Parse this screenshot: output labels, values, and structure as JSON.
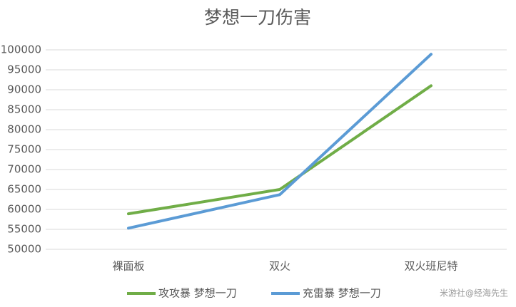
{
  "chart_data": {
    "type": "line",
    "title": "梦想一刀伤害",
    "categories": [
      "裸面板",
      "双火",
      "双火班尼特"
    ],
    "series": [
      {
        "name": "攻攻暴 梦想一刀",
        "color": "#70ad47",
        "values": [
          58900,
          65000,
          91000
        ]
      },
      {
        "name": "充雷暴 梦想一刀",
        "color": "#5b9bd5",
        "values": [
          55300,
          63700,
          98900
        ]
      }
    ],
    "ylim": [
      50000,
      100000
    ],
    "yticks": [
      50000,
      55000,
      60000,
      65000,
      70000,
      75000,
      80000,
      85000,
      90000,
      95000,
      100000
    ],
    "grid": true,
    "legend": "bottom",
    "watermark": "米游社@经海先生"
  }
}
